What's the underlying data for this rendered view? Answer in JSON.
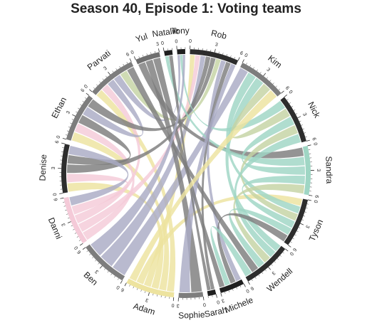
{
  "chart_data": {
    "type": "chord",
    "title": "Season 40, Episode 1: Voting teams",
    "segments": [
      {
        "name": "Ethan",
        "color": "#7d7d7d",
        "max": 6,
        "ticks": [
          0,
          3,
          6
        ]
      },
      {
        "name": "Parvati",
        "color": "#7d7d7d",
        "max": 6,
        "ticks": [
          0,
          3,
          6
        ]
      },
      {
        "name": "Yul",
        "color": "#6e6e6e",
        "max": 3,
        "ticks": [
          0,
          3
        ]
      },
      {
        "name": "Natalie",
        "color": "#1f1f1f",
        "max": 1,
        "ticks": [
          0
        ]
      },
      {
        "name": "Tony",
        "color": "#1f1f1f",
        "max": 1,
        "ticks": [
          0
        ]
      },
      {
        "name": "Rob",
        "color": "#2d2d2d",
        "max": 6,
        "ticks": [
          0,
          3,
          6
        ]
      },
      {
        "name": "Kim",
        "color": "#7d7d7d",
        "max": 6,
        "ticks": [
          0,
          3,
          6
        ]
      },
      {
        "name": "Nick",
        "color": "#2d2d2d",
        "max": 6,
        "ticks": [
          0,
          3,
          6
        ]
      },
      {
        "name": "Sandra",
        "color": "#9fd6c4",
        "max": 6,
        "ticks": [
          0,
          3,
          6
        ]
      },
      {
        "name": "Tyson",
        "color": "#2d2d2d",
        "max": 6,
        "ticks": [
          0,
          3,
          6
        ]
      },
      {
        "name": "Wendell",
        "color": "#2d2d2d",
        "max": 6,
        "ticks": [
          0,
          3,
          6
        ]
      },
      {
        "name": "Michele",
        "color": "#1f1f1f",
        "max": 3,
        "ticks": [
          0,
          3
        ]
      },
      {
        "name": "Sarah",
        "color": "#1f1f1f",
        "max": 1,
        "ticks": [
          0
        ]
      },
      {
        "name": "Sophie",
        "color": "#7d7d7d",
        "max": 3,
        "ticks": [
          0,
          3
        ]
      },
      {
        "name": "Adam",
        "color": "#ede39f",
        "max": 6,
        "ticks": [
          0,
          3,
          6
        ]
      },
      {
        "name": "Ben",
        "color": "#7d7d7d",
        "max": 6,
        "ticks": [
          0,
          3,
          6
        ]
      },
      {
        "name": "Danni",
        "color": "#f4cad8",
        "max": 6,
        "ticks": [
          0,
          3,
          6
        ]
      },
      {
        "name": "Denise",
        "color": "#2d2d2d",
        "max": 6,
        "ticks": [
          0,
          3,
          6
        ]
      }
    ],
    "links": [
      {
        "from": "Adam",
        "to": "Parvati",
        "color": "#ede39f"
      },
      {
        "from": "Adam",
        "to": "Ethan",
        "color": "#ede39f"
      },
      {
        "from": "Adam",
        "to": "Denise",
        "color": "#ede39f"
      },
      {
        "from": "Adam",
        "to": "Rob",
        "color": "#ede39f"
      },
      {
        "from": "Adam",
        "to": "Tyson",
        "color": "#ede39f"
      },
      {
        "from": "Danni",
        "to": "Ethan",
        "color": "#f4cad8"
      },
      {
        "from": "Danni",
        "to": "Rob",
        "color": "#f4cad8"
      },
      {
        "from": "Danni",
        "to": "Parvati",
        "color": "#f4cad8"
      },
      {
        "from": "Danni",
        "to": "Denise",
        "color": "#f4cad8"
      },
      {
        "from": "Ben",
        "to": "Kim",
        "color": "#a9abc4"
      },
      {
        "from": "Ben",
        "to": "Rob",
        "color": "#a9abc4"
      },
      {
        "from": "Denise",
        "to": "Rob",
        "color": "#7d7d7d"
      },
      {
        "from": "Denise",
        "to": "Ethan",
        "color": "#7d7d7d"
      },
      {
        "from": "Denise",
        "to": "Danni",
        "color": "#a9abc4"
      },
      {
        "from": "Ethan",
        "to": "Parvati",
        "color": "#a9abc4"
      },
      {
        "from": "Ethan",
        "to": "Rob",
        "color": "#7d7d7d"
      },
      {
        "from": "Parvati",
        "to": "Tony",
        "color": "#a9abc4"
      },
      {
        "from": "Parvati",
        "to": "Rob",
        "color": "#c5d3a4"
      },
      {
        "from": "Yul",
        "to": "Sandra",
        "color": "#7d7d7d"
      },
      {
        "from": "Yul",
        "to": "Sophie",
        "color": "#7d7d7d"
      },
      {
        "from": "Natalie",
        "to": "Sandra",
        "color": "#9fd6c4"
      },
      {
        "from": "Tony",
        "to": "Nick",
        "color": "#9fd6c4"
      },
      {
        "from": "Rob",
        "to": "Michele",
        "color": "#a9abc4"
      },
      {
        "from": "Rob",
        "to": "Sarah",
        "color": "#7d7d7d"
      },
      {
        "from": "Kim",
        "to": "Tyson",
        "color": "#9fd6c4"
      },
      {
        "from": "Kim",
        "to": "Wendell",
        "color": "#9fd6c4"
      },
      {
        "from": "Kim",
        "to": "Nick",
        "color": "#c5d3a4"
      },
      {
        "from": "Nick",
        "to": "Sandra",
        "color": "#9fd6c4"
      },
      {
        "from": "Nick",
        "to": "Tyson",
        "color": "#c5d3a4"
      },
      {
        "from": "Nick",
        "to": "Wendell",
        "color": "#9fd6c4"
      },
      {
        "from": "Sandra",
        "to": "Tyson",
        "color": "#9fd6c4"
      },
      {
        "from": "Sandra",
        "to": "Wendell",
        "color": "#c5d3a4"
      },
      {
        "from": "Tyson",
        "to": "Wendell",
        "color": "#9fd6c4"
      },
      {
        "from": "Tyson",
        "to": "Michele",
        "color": "#7d7d7d"
      },
      {
        "from": "Wendell",
        "to": "Parvati",
        "color": "#7d7d7d"
      },
      {
        "from": "Wendell",
        "to": "Michele",
        "color": "#9fd6c4"
      },
      {
        "from": "Sophie",
        "to": "Rob",
        "color": "#a9abc4"
      },
      {
        "from": "Michele",
        "to": "Yul",
        "color": "#7d7d7d"
      },
      {
        "from": "Sarah",
        "to": "Natalie",
        "color": "#7d7d7d"
      },
      {
        "from": "Ben",
        "to": "Tony",
        "color": "#a9abc4"
      },
      {
        "from": "Adam",
        "to": "Kim",
        "color": "#ede39f"
      }
    ]
  }
}
